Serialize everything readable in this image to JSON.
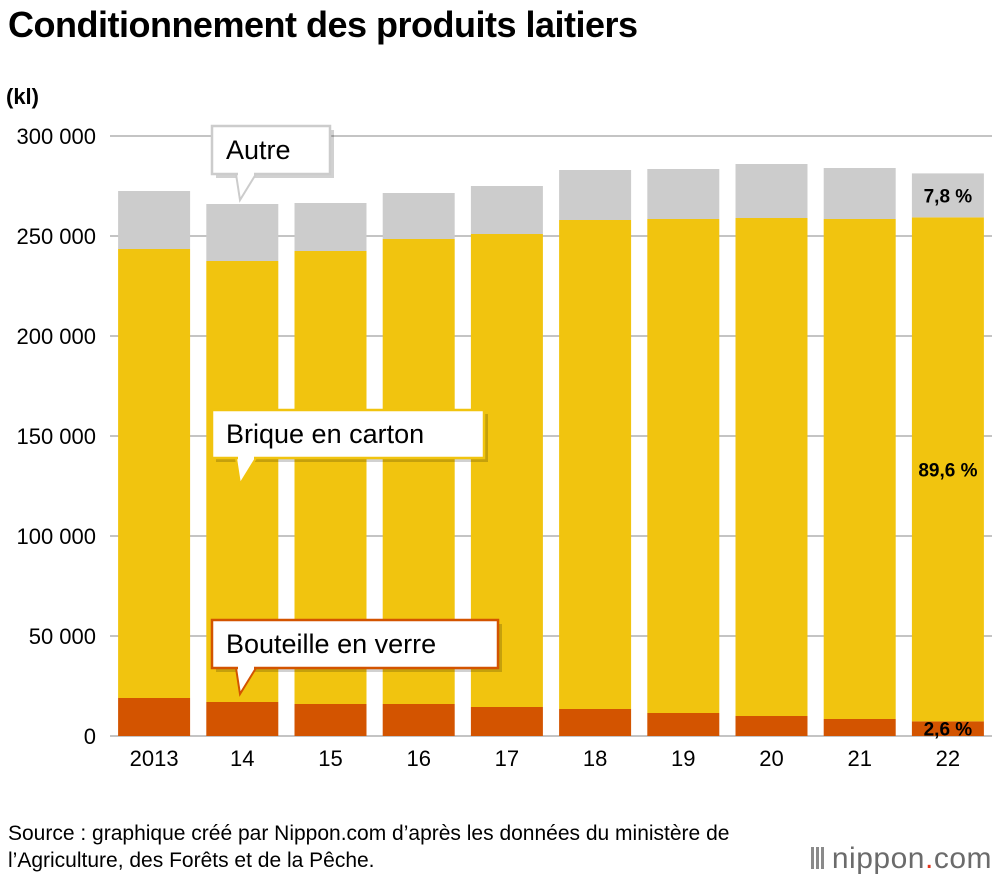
{
  "title": "Conditionnement des produits laitiers",
  "source": "Source : graphique créé par Nippon.com d’après les données du ministère de l’Agriculture, des Forêts et de la Pêche.",
  "logo": {
    "name": "nippon",
    "dot": ".",
    "tld": "com"
  },
  "colors": {
    "verre": "#d35400",
    "carton": "#f1c40f",
    "autre": "#cccccc",
    "grid": "#b0b0b0"
  },
  "chart_data": {
    "type": "bar",
    "stacked": true,
    "ylabel": "(kl)",
    "ylim": [
      0,
      300000
    ],
    "yticks": [
      0,
      50000,
      100000,
      150000,
      200000,
      250000,
      300000
    ],
    "ytick_labels": [
      "0",
      "50 000",
      "100 000",
      "150 000",
      "200 000",
      "250 000",
      "300 000"
    ],
    "categories": [
      "2013",
      "14",
      "15",
      "16",
      "17",
      "18",
      "19",
      "20",
      "21",
      "22"
    ],
    "series": [
      {
        "name": "Bouteille en verre",
        "color": "#d35400",
        "values": [
          19000,
          17000,
          16000,
          16000,
          14500,
          13500,
          11500,
          10000,
          8500,
          7300
        ]
      },
      {
        "name": "Brique en carton",
        "color": "#f1c40f",
        "values": [
          224500,
          220500,
          226500,
          232500,
          236500,
          244500,
          247000,
          249000,
          250000,
          252000
        ]
      },
      {
        "name": "Autre",
        "color": "#cccccc",
        "values": [
          29000,
          28500,
          24000,
          23000,
          24000,
          25000,
          25000,
          27000,
          25500,
          22000
        ]
      }
    ],
    "annotations": [
      {
        "text": "7,8 %",
        "series": "Autre",
        "category": "22"
      },
      {
        "text": "89,6 %",
        "series": "Brique en carton",
        "category": "22"
      },
      {
        "text": "2,6 %",
        "series": "Bouteille en verre",
        "category": "22"
      }
    ],
    "grid": true,
    "legend": "callouts"
  }
}
